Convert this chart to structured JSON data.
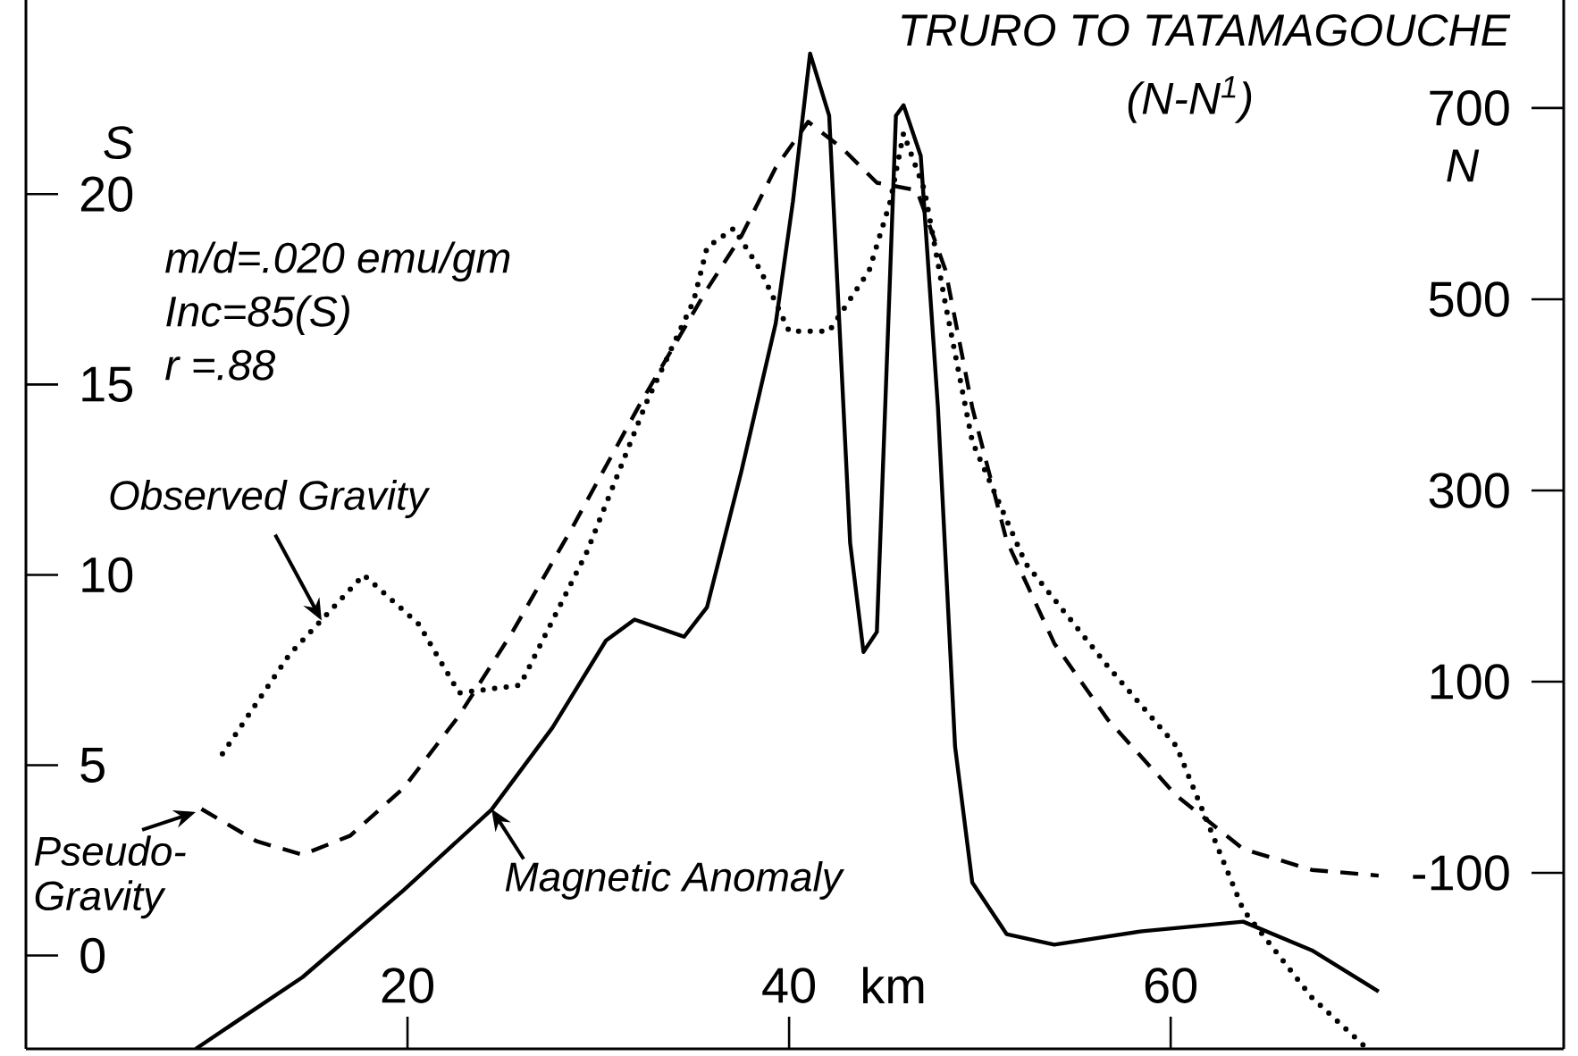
{
  "chart_data": {
    "type": "line",
    "title": "TRURO TO TATAMAGOUCHE",
    "subtitle": "(N-N$^{1}$)",
    "xlabel": "km",
    "ylabel": "S",
    "y2label": "N",
    "xlim": [
      0,
      80.6
    ],
    "xticks": [
      20,
      40,
      60
    ],
    "ylim": [
      -2.45,
      25.1
    ],
    "yticks": [
      0,
      5,
      10,
      15,
      20
    ],
    "y2lim": [
      -284,
      813
    ],
    "y2ticks": [
      -100,
      100,
      300,
      500,
      700
    ],
    "annotations": [
      "m/d=.020 emu/gm",
      "Inc=85(S)",
      "r =.88",
      {
        "text": "Observed Gravity",
        "x": 15.5,
        "y": 8.8
      },
      {
        "text": "Pseudo-Gravity",
        "x": 8.9,
        "y": 3.77
      },
      {
        "text": "Magnetic Anomaly",
        "x": 24.4,
        "y": 3.85
      }
    ],
    "grid": false,
    "marker": "none",
    "series": [
      {
        "color": "#000000",
        "line_style": "dotted",
        "x": [
          10.3,
          13.8,
          17.7,
          20.6,
          22.7,
          25.9,
          29.4,
          32.5,
          35.0,
          35.7,
          37.1,
          38.5,
          40.0,
          42.1,
          44.2,
          45.3,
          46.0,
          47.1,
          48.2,
          49.6,
          52.4,
          56.7,
          60.3,
          63.8,
          67.4,
          70.2
        ],
        "values": [
          5.3,
          7.9,
          10.0,
          8.7,
          6.9,
          7.1,
          10.6,
          14.5,
          17.2,
          18.6,
          19.1,
          18.0,
          16.4,
          16.4,
          18.0,
          19.8,
          21.6,
          20.1,
          17.1,
          13.5,
          10.3,
          7.6,
          5.5,
          1.2,
          -1.1,
          -2.4
        ]
      },
      {
        "color": "#000000",
        "line_style": "dashed",
        "x": [
          9.2,
          12.1,
          14.5,
          17.0,
          19.8,
          22.7,
          25.5,
          28.7,
          32.2,
          35.7,
          37.5,
          39.3,
          41.0,
          42.8,
          44.6,
          46.7,
          48.2,
          49.6,
          51.4,
          53.9,
          56.7,
          60.3,
          63.8,
          67.4,
          70.9
        ],
        "values": [
          3.85,
          3.0,
          2.65,
          3.15,
          4.4,
          6.3,
          8.5,
          11.3,
          14.5,
          17.5,
          18.9,
          20.7,
          21.9,
          21.2,
          20.3,
          20.1,
          18.0,
          14.4,
          10.9,
          8.2,
          6.2,
          4.2,
          2.8,
          2.25,
          2.1
        ]
      },
      {
        "color": "#000000",
        "line_style": "solid",
        "axis": "y2",
        "x": [
          8.9,
          14.5,
          19.8,
          24.4,
          27.6,
          30.4,
          31.9,
          34.5,
          35.7,
          37.5,
          39.3,
          40.2,
          41.1,
          42.1,
          42.5,
          43.2,
          43.9,
          44.6,
          45.3,
          45.6,
          46.0,
          46.9,
          47.8,
          48.7,
          49.6,
          51.4,
          53.9,
          58.5,
          63.8,
          67.4,
          70.9
        ],
        "values": [
          -284,
          -209,
          -118,
          -34,
          52,
          143,
          165,
          147,
          178,
          320,
          475,
          602,
          757,
          692,
          529,
          245,
          131,
          152,
          529,
          692,
          703,
          650,
          387,
          32,
          -110,
          -164,
          -175,
          -161,
          -151,
          -181,
          -224
        ]
      }
    ]
  }
}
